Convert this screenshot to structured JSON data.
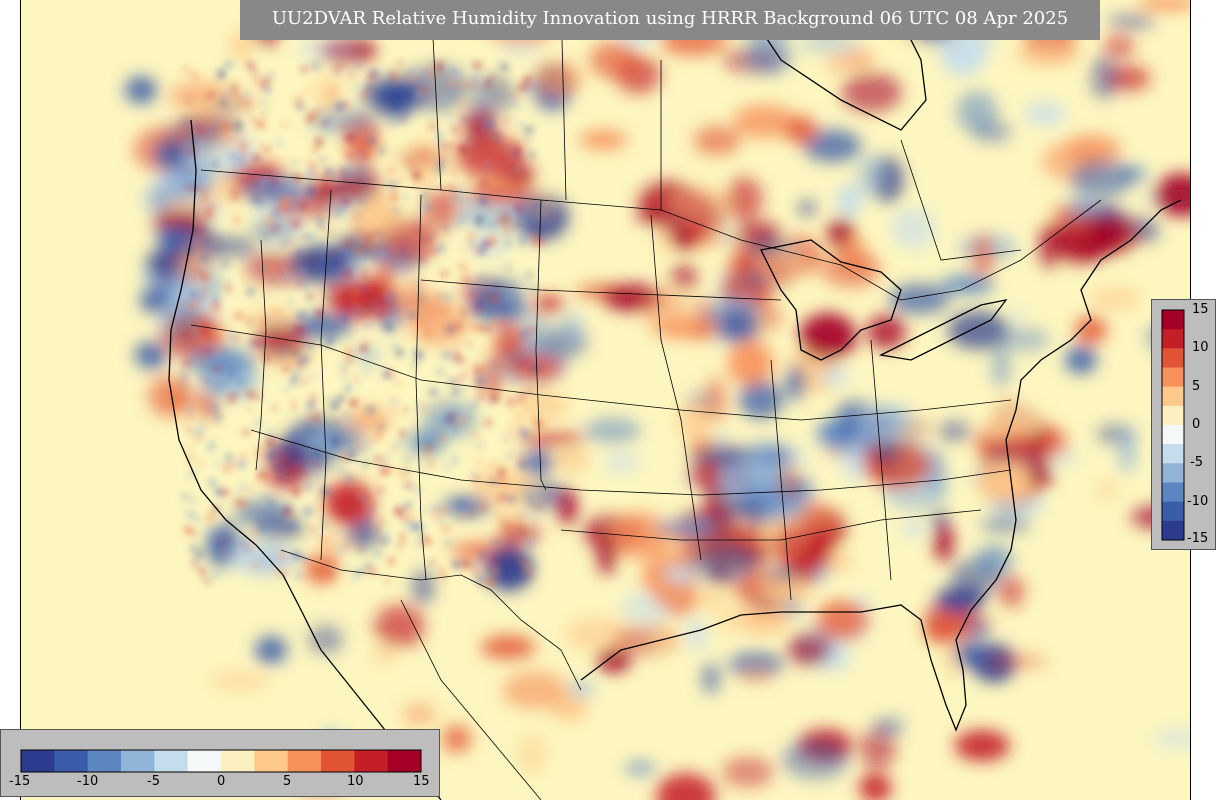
{
  "title": "UU2DVAR Relative Humidity Innovation using HRRR Background 06 UTC 08 Apr 2025",
  "colorbar": {
    "ticks_horizontal": [
      "-15",
      "-10",
      "-5",
      "0",
      "5",
      "10",
      "15"
    ],
    "ticks_vertical": [
      "15",
      "10",
      "5",
      "0",
      "-5",
      "-10",
      "-15"
    ],
    "range": [
      -15,
      15
    ],
    "colors": [
      "#2c3b8e",
      "#3b5ca8",
      "#5b86c0",
      "#8fb4d8",
      "#c4dcec",
      "#f4f8f8",
      "#fdf0c0",
      "#fdc98a",
      "#f6915a",
      "#e25534",
      "#c41f27",
      "#a50026"
    ]
  },
  "map": {
    "background_color": "#fdf6c0",
    "positive_color": "#c41f27",
    "negative_color": "#2c4a9a"
  }
}
